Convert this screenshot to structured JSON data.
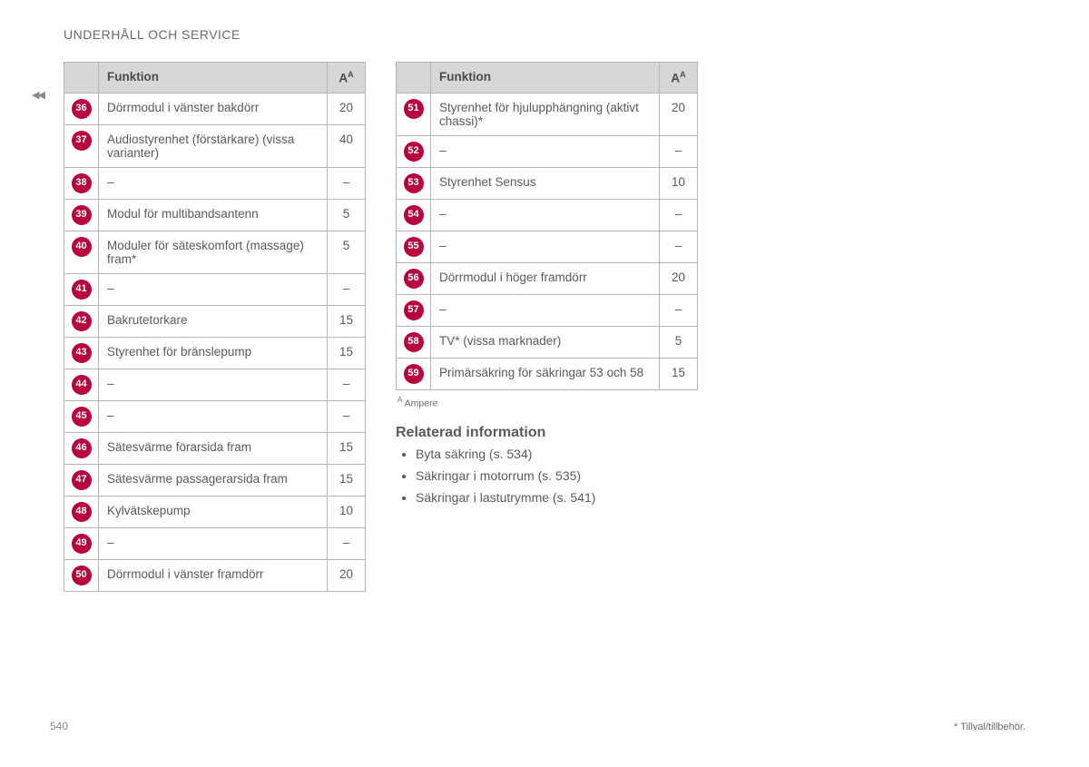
{
  "section_title": "UNDERHÅLL OCH SERVICE",
  "continuation_marker": "◀◀",
  "headers": {
    "funktion": "Funktion",
    "amp_label": "A",
    "amp_super": "A"
  },
  "table1": [
    {
      "n": "36",
      "f": "Dörrmodul i vänster bakdörr",
      "a": "20"
    },
    {
      "n": "37",
      "f": "Audiostyrenhet (förstärkare) (vissa varianter)",
      "a": "40"
    },
    {
      "n": "38",
      "f": "–",
      "a": "–"
    },
    {
      "n": "39",
      "f": "Modul för multibandsantenn",
      "a": "5"
    },
    {
      "n": "40",
      "f": "Moduler för säteskomfort (massage) fram*",
      "a": "5"
    },
    {
      "n": "41",
      "f": "–",
      "a": "–"
    },
    {
      "n": "42",
      "f": "Bakrutetorkare",
      "a": "15"
    },
    {
      "n": "43",
      "f": "Styrenhet för bränslepump",
      "a": "15"
    },
    {
      "n": "44",
      "f": "–",
      "a": "–"
    },
    {
      "n": "45",
      "f": "–",
      "a": "–"
    },
    {
      "n": "46",
      "f": "Sätesvärme förarsida fram",
      "a": "15"
    },
    {
      "n": "47",
      "f": "Sätesvärme passagerarsida fram",
      "a": "15"
    },
    {
      "n": "48",
      "f": "Kylvätskepump",
      "a": "10"
    },
    {
      "n": "49",
      "f": "–",
      "a": "–"
    },
    {
      "n": "50",
      "f": "Dörrmodul i vänster framdörr",
      "a": "20"
    }
  ],
  "table2": [
    {
      "n": "51",
      "f": "Styrenhet för hjulupphängning (aktivt chassi)*",
      "a": "20"
    },
    {
      "n": "52",
      "f": "–",
      "a": "–"
    },
    {
      "n": "53",
      "f": "Styrenhet Sensus",
      "a": "10"
    },
    {
      "n": "54",
      "f": "–",
      "a": "–"
    },
    {
      "n": "55",
      "f": "–",
      "a": "–"
    },
    {
      "n": "56",
      "f": "Dörrmodul i höger framdörr",
      "a": "20"
    },
    {
      "n": "57",
      "f": "–",
      "a": "–"
    },
    {
      "n": "58",
      "f": "TV* (vissa marknader)",
      "a": "5"
    },
    {
      "n": "59",
      "f": "Primärsäkring för säkringar 53 och 58",
      "a": "15"
    }
  ],
  "footnote_text": " Ampere",
  "footnote_super": "A",
  "related_heading": "Relaterad information",
  "related_items": [
    "Byta säkring (s. 534)",
    "Säkringar i motorrum (s. 535)",
    "Säkringar i lastutrymme (s. 541)"
  ],
  "page_number": "540",
  "footer_note": "* Tillval/tillbehör.",
  "colors": {
    "badge_bg": "#b8003e",
    "header_bg": "#d7d7d7",
    "border": "#b5b5b5",
    "text": "#5a5a5a"
  }
}
